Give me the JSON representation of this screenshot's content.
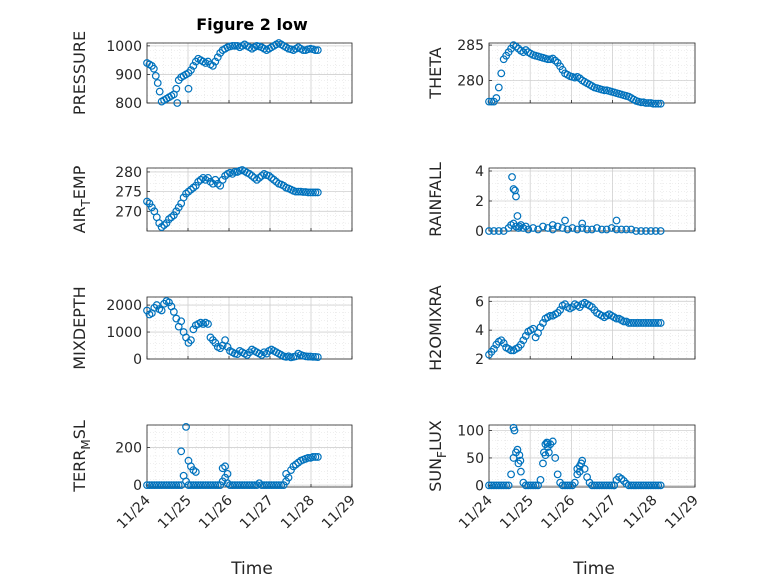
{
  "figure_title": "Figure 2 low",
  "colors": {
    "marker": "#0072bd",
    "axis": "#262626",
    "grid": "#dfdfdf"
  },
  "chart_data": [
    {
      "type": "scatter",
      "ylabel": "PRESSURE",
      "ylabel_sub": "",
      "ylim": [
        800,
        1010
      ],
      "yticks": [
        800,
        900,
        1000
      ],
      "xlim": [
        0,
        4.2
      ],
      "xticks": [
        "11/24",
        "11/25",
        "11/26",
        "11/27",
        "11/28",
        "11/29"
      ],
      "grid": true,
      "x": [
        0.0,
        0.05,
        0.1,
        0.14,
        0.18,
        0.22,
        0.26,
        0.3,
        0.35,
        0.4,
        0.45,
        0.5,
        0.55,
        0.6,
        0.65,
        0.7,
        0.75,
        0.8,
        0.85,
        0.9,
        0.95,
        1.0,
        1.05,
        1.1,
        1.15,
        1.2,
        1.25,
        1.3,
        1.35,
        1.4,
        1.45,
        1.5,
        1.55,
        1.6,
        1.65,
        1.7,
        1.75,
        1.8,
        1.85,
        1.9,
        1.95,
        2.0,
        2.05,
        2.1,
        2.15,
        2.2,
        2.25,
        2.3,
        2.35,
        2.4,
        2.45,
        2.5,
        2.55,
        2.6,
        2.65,
        2.7,
        2.75,
        2.8,
        2.85,
        2.9,
        2.95,
        3.0,
        3.05,
        3.1,
        3.15,
        3.2,
        3.25,
        3.3,
        3.35,
        3.4,
        3.45,
        3.5,
        0.62,
        0.85
      ],
      "y": [
        940,
        935,
        930,
        920,
        895,
        870,
        840,
        805,
        810,
        815,
        820,
        825,
        830,
        850,
        880,
        890,
        895,
        900,
        905,
        915,
        930,
        945,
        955,
        950,
        945,
        940,
        945,
        935,
        930,
        945,
        960,
        975,
        985,
        990,
        995,
        998,
        1000,
        1000,
        1000,
        995,
        1000,
        1005,
        1000,
        995,
        990,
        995,
        1000,
        998,
        995,
        990,
        985,
        990,
        995,
        1000,
        1005,
        1010,
        1005,
        1000,
        995,
        990,
        988,
        985,
        990,
        995,
        990,
        985,
        985,
        988,
        990,
        988,
        985,
        985,
        800,
        850
      ]
    },
    {
      "type": "scatter",
      "ylabel": "THETA",
      "ylabel_sub": "",
      "ylim": [
        276.8,
        285.3
      ],
      "yticks": [
        280,
        285
      ],
      "xlim": [
        0,
        4.2
      ],
      "xticks": [
        "11/24",
        "11/25",
        "11/26",
        "11/27",
        "11/28",
        "11/29"
      ],
      "grid": true,
      "x": [
        0.0,
        0.05,
        0.1,
        0.15,
        0.2,
        0.25,
        0.3,
        0.35,
        0.4,
        0.45,
        0.5,
        0.55,
        0.6,
        0.65,
        0.7,
        0.75,
        0.8,
        0.85,
        0.9,
        0.95,
        1.0,
        1.05,
        1.1,
        1.15,
        1.2,
        1.25,
        1.3,
        1.35,
        1.4,
        1.45,
        1.5,
        1.55,
        1.6,
        1.65,
        1.7,
        1.75,
        1.8,
        1.85,
        1.9,
        1.95,
        2.0,
        2.05,
        2.1,
        2.15,
        2.2,
        2.25,
        2.3,
        2.35,
        2.4,
        2.45,
        2.5,
        2.55,
        2.6,
        2.65,
        2.7,
        2.75,
        2.8,
        2.85,
        2.9,
        2.95,
        3.0,
        3.05,
        3.1,
        3.15,
        3.2,
        3.25,
        3.3,
        3.35,
        3.4,
        3.45,
        3.5
      ],
      "y": [
        277,
        277,
        277,
        277.5,
        279,
        281,
        283,
        283.5,
        284,
        284.5,
        285,
        284.8,
        284.5,
        284.2,
        284,
        284.3,
        284,
        283.8,
        283.6,
        283.5,
        283.4,
        283.3,
        283.2,
        283.1,
        283,
        283,
        283.1,
        282.8,
        282.5,
        282,
        281.5,
        281,
        280.8,
        280.6,
        280.5,
        280.4,
        280.5,
        280.3,
        280,
        279.8,
        279.6,
        279.4,
        279.2,
        279,
        278.9,
        278.8,
        278.7,
        278.6,
        278.6,
        278.5,
        278.4,
        278.3,
        278.2,
        278.1,
        278,
        277.9,
        277.8,
        277.7,
        277.5,
        277.3,
        277.1,
        277,
        276.9,
        276.9,
        276.8,
        276.8,
        276.8,
        276.7,
        276.7,
        276.7,
        276.7
      ]
    },
    {
      "type": "scatter",
      "ylabel": "AIR",
      "ylabel_sub": "T",
      "ylabel_rest": "EMP",
      "ylim": [
        265,
        281
      ],
      "yticks": [
        270,
        275,
        280
      ],
      "xlim": [
        0,
        4.2
      ],
      "xticks": [
        "11/24",
        "11/25",
        "11/26",
        "11/27",
        "11/28",
        "11/29"
      ],
      "grid": true,
      "x": [
        0.0,
        0.05,
        0.1,
        0.15,
        0.2,
        0.25,
        0.3,
        0.35,
        0.4,
        0.45,
        0.5,
        0.55,
        0.6,
        0.65,
        0.7,
        0.75,
        0.8,
        0.85,
        0.9,
        0.95,
        1.0,
        1.05,
        1.1,
        1.15,
        1.2,
        1.25,
        1.3,
        1.35,
        1.4,
        1.45,
        1.5,
        1.55,
        1.6,
        1.65,
        1.7,
        1.75,
        1.8,
        1.85,
        1.9,
        1.95,
        2.0,
        2.05,
        2.1,
        2.15,
        2.2,
        2.25,
        2.3,
        2.35,
        2.4,
        2.45,
        2.5,
        2.55,
        2.6,
        2.65,
        2.7,
        2.75,
        2.8,
        2.85,
        2.9,
        2.95,
        3.0,
        3.05,
        3.1,
        3.15,
        3.2,
        3.25,
        3.3,
        3.35,
        3.4,
        3.45,
        3.5
      ],
      "y": [
        272.5,
        272,
        271,
        270,
        268.5,
        267,
        266,
        266.5,
        267,
        268,
        268.5,
        269,
        270,
        271,
        272,
        273.5,
        274.5,
        275,
        275.5,
        276,
        276.5,
        277.5,
        278,
        278.5,
        278,
        278.5,
        277.5,
        277,
        278,
        277,
        276.5,
        278,
        279,
        279.5,
        279.8,
        279.5,
        280,
        280,
        280.3,
        280.5,
        280.2,
        279.8,
        279.5,
        279,
        278.5,
        278,
        278.5,
        279,
        279.5,
        279.2,
        279,
        278.5,
        278,
        277.5,
        277,
        276.8,
        276.5,
        276,
        275.8,
        275.5,
        275.2,
        275,
        275,
        275,
        274.9,
        274.9,
        274.8,
        274.8,
        274.8,
        274.8,
        274.8
      ]
    },
    {
      "type": "scatter",
      "ylabel": "RAINFALL",
      "ylabel_sub": "",
      "ylim": [
        0,
        4.2
      ],
      "yticks": [
        0,
        2,
        4
      ],
      "xlim": [
        0,
        4.2
      ],
      "xticks": [
        "11/24",
        "11/25",
        "11/26",
        "11/27",
        "11/28",
        "11/29"
      ],
      "grid": true,
      "x": [
        0.0,
        0.1,
        0.2,
        0.3,
        0.4,
        0.45,
        0.5,
        0.55,
        0.6,
        0.65,
        0.7,
        0.75,
        0.8,
        0.9,
        1.0,
        1.1,
        1.2,
        1.3,
        1.4,
        1.5,
        1.6,
        1.7,
        1.8,
        1.9,
        2.0,
        2.1,
        2.2,
        2.3,
        2.4,
        2.5,
        2.6,
        2.7,
        2.8,
        2.9,
        3.0,
        3.1,
        3.2,
        3.3,
        3.4,
        3.5,
        0.47,
        0.5,
        0.53,
        0.55,
        0.58,
        0.62,
        1.3,
        1.55,
        1.9,
        2.6
      ],
      "y": [
        0,
        0,
        0,
        0,
        0.2,
        0.4,
        0.5,
        0.3,
        0.2,
        0.4,
        0.2,
        0.3,
        0.1,
        0.2,
        0.1,
        0.3,
        0.2,
        0.1,
        0.3,
        0.2,
        0.1,
        0.2,
        0.1,
        0.2,
        0.1,
        0.1,
        0.2,
        0.1,
        0.1,
        0.2,
        0.1,
        0.1,
        0.1,
        0.1,
        0,
        0,
        0,
        0,
        0,
        0,
        3.6,
        2.8,
        2.7,
        2.3,
        1.0,
        0.3,
        0.4,
        0.7,
        0.5,
        0.7
      ]
    },
    {
      "type": "scatter",
      "ylabel": "MIXDEPTH",
      "ylabel_sub": "",
      "ylim": [
        0,
        2300
      ],
      "yticks": [
        0,
        1000,
        2000
      ],
      "xlim": [
        0,
        4.2
      ],
      "xticks": [
        "11/24",
        "11/25",
        "11/26",
        "11/27",
        "11/28",
        "11/29"
      ],
      "grid": true,
      "x": [
        0.0,
        0.05,
        0.1,
        0.15,
        0.2,
        0.25,
        0.3,
        0.35,
        0.4,
        0.45,
        0.5,
        0.55,
        0.6,
        0.65,
        0.7,
        0.75,
        0.8,
        0.85,
        0.9,
        0.95,
        1.0,
        1.05,
        1.1,
        1.15,
        1.2,
        1.25,
        1.3,
        1.35,
        1.4,
        1.45,
        1.5,
        1.55,
        1.6,
        1.65,
        1.7,
        1.75,
        1.8,
        1.85,
        1.9,
        1.95,
        2.0,
        2.05,
        2.1,
        2.15,
        2.2,
        2.25,
        2.3,
        2.35,
        2.4,
        2.45,
        2.5,
        2.55,
        2.6,
        2.65,
        2.7,
        2.75,
        2.8,
        2.85,
        2.9,
        2.95,
        3.0,
        3.05,
        3.1,
        3.15,
        3.2,
        3.25,
        3.3,
        3.35,
        3.4,
        3.45,
        3.5
      ],
      "y": [
        1800,
        1650,
        1700,
        1900,
        2000,
        1850,
        1800,
        2050,
        2150,
        2100,
        1950,
        1750,
        1500,
        1200,
        1400,
        1000,
        800,
        600,
        700,
        1100,
        1250,
        1300,
        1350,
        1300,
        1350,
        1300,
        800,
        700,
        600,
        450,
        400,
        500,
        700,
        450,
        300,
        250,
        200,
        180,
        300,
        250,
        200,
        150,
        250,
        350,
        300,
        250,
        200,
        150,
        250,
        200,
        300,
        350,
        300,
        250,
        200,
        150,
        100,
        80,
        100,
        60,
        80,
        100,
        200,
        150,
        120,
        100,
        90,
        90,
        80,
        80,
        70
      ]
    },
    {
      "type": "scatter",
      "ylabel": "H2OMIXRA",
      "ylabel_sub": "",
      "ylim": [
        2,
        6.3
      ],
      "yticks": [
        2,
        4,
        6
      ],
      "xlim": [
        0,
        4.2
      ],
      "xticks": [
        "11/24",
        "11/25",
        "11/26",
        "11/27",
        "11/28",
        "11/29"
      ],
      "grid": true,
      "x": [
        0.0,
        0.05,
        0.1,
        0.15,
        0.2,
        0.25,
        0.3,
        0.35,
        0.4,
        0.45,
        0.5,
        0.55,
        0.6,
        0.65,
        0.7,
        0.75,
        0.8,
        0.85,
        0.9,
        0.95,
        1.0,
        1.05,
        1.1,
        1.15,
        1.2,
        1.25,
        1.3,
        1.35,
        1.4,
        1.45,
        1.5,
        1.55,
        1.6,
        1.65,
        1.7,
        1.75,
        1.8,
        1.85,
        1.9,
        1.95,
        2.0,
        2.05,
        2.1,
        2.15,
        2.2,
        2.25,
        2.3,
        2.35,
        2.4,
        2.45,
        2.5,
        2.55,
        2.6,
        2.65,
        2.7,
        2.75,
        2.8,
        2.85,
        2.9,
        2.95,
        3.0,
        3.05,
        3.1,
        3.15,
        3.2,
        3.25,
        3.3,
        3.35,
        3.4,
        3.45,
        3.5
      ],
      "y": [
        2.3,
        2.5,
        2.7,
        3.0,
        3.2,
        3.3,
        3.1,
        2.8,
        2.7,
        2.6,
        2.6,
        2.7,
        2.8,
        3.0,
        3.3,
        3.6,
        3.9,
        4.0,
        4.1,
        3.5,
        3.8,
        4.2,
        4.5,
        4.8,
        4.9,
        5.0,
        5.0,
        5.1,
        5.2,
        5.4,
        5.7,
        5.8,
        5.6,
        5.5,
        5.6,
        5.8,
        5.7,
        5.6,
        5.8,
        5.9,
        5.8,
        5.7,
        5.6,
        5.4,
        5.2,
        5.1,
        5.0,
        4.9,
        5.0,
        5.1,
        5.0,
        4.9,
        4.8,
        4.8,
        4.7,
        4.6,
        4.6,
        4.5,
        4.5,
        4.5,
        4.5,
        4.5,
        4.5,
        4.5,
        4.5,
        4.5,
        4.5,
        4.5,
        4.5,
        4.5,
        4.5
      ]
    },
    {
      "type": "scatter",
      "ylabel": "TERR",
      "ylabel_sub": "M",
      "ylabel_rest": "SL",
      "ylim": [
        -10,
        320
      ],
      "yticks": [
        0,
        200
      ],
      "xlim": [
        0,
        4.2
      ],
      "xticks": [
        "11/24",
        "11/25",
        "11/26",
        "11/27",
        "11/28",
        "11/29"
      ],
      "grid": true,
      "x": [
        0.0,
        0.05,
        0.1,
        0.15,
        0.2,
        0.25,
        0.3,
        0.35,
        0.4,
        0.45,
        0.5,
        0.55,
        0.6,
        0.65,
        0.7,
        0.75,
        0.8,
        0.85,
        0.9,
        0.95,
        1.0,
        1.05,
        1.1,
        1.15,
        1.2,
        1.25,
        1.3,
        1.35,
        1.4,
        1.45,
        1.5,
        1.55,
        1.6,
        1.65,
        1.7,
        1.75,
        1.8,
        1.85,
        1.9,
        1.95,
        2.0,
        2.05,
        2.1,
        2.15,
        2.2,
        2.25,
        2.3,
        2.35,
        2.4,
        2.45,
        2.5,
        2.55,
        2.6,
        2.65,
        2.7,
        2.75,
        2.8,
        2.85,
        2.9,
        2.95,
        3.0,
        3.05,
        3.1,
        3.15,
        3.2,
        3.25,
        3.3,
        3.35,
        3.4,
        3.45,
        3.5,
        0.7,
        0.8,
        0.85,
        0.9,
        0.95,
        1.0,
        1.55,
        1.6,
        1.65,
        2.85
      ],
      "y": [
        0,
        0,
        0,
        0,
        0,
        0,
        0,
        0,
        0,
        0,
        0,
        0,
        0,
        0,
        0,
        50,
        20,
        0,
        0,
        0,
        0,
        0,
        0,
        0,
        0,
        0,
        0,
        0,
        0,
        0,
        0,
        20,
        40,
        10,
        0,
        0,
        0,
        0,
        0,
        0,
        0,
        0,
        0,
        0,
        0,
        0,
        10,
        0,
        0,
        0,
        0,
        0,
        0,
        0,
        0,
        0,
        0,
        20,
        40,
        80,
        100,
        110,
        120,
        130,
        135,
        140,
        145,
        145,
        150,
        150,
        150,
        180,
        310,
        130,
        100,
        80,
        70,
        90,
        100,
        60,
        60
      ]
    },
    {
      "type": "scatter",
      "ylabel": "SUN",
      "ylabel_sub": "F",
      "ylabel_rest": "LUX",
      "ylim": [
        -3,
        110
      ],
      "yticks": [
        0,
        50,
        100
      ],
      "xlim": [
        0,
        4.2
      ],
      "xticks": [
        "11/24",
        "11/25",
        "11/26",
        "11/27",
        "11/28",
        "11/29"
      ],
      "grid": true,
      "x": [
        0.0,
        0.05,
        0.1,
        0.15,
        0.2,
        0.25,
        0.3,
        0.35,
        0.4,
        0.45,
        0.5,
        0.55,
        0.6,
        0.65,
        0.7,
        0.75,
        0.8,
        0.85,
        0.9,
        0.95,
        1.0,
        1.05,
        1.1,
        1.15,
        1.2,
        1.25,
        1.3,
        1.35,
        1.4,
        1.45,
        1.5,
        1.55,
        1.6,
        1.65,
        1.7,
        1.75,
        1.8,
        1.85,
        1.9,
        1.95,
        2.0,
        2.05,
        2.1,
        2.15,
        2.2,
        2.25,
        2.3,
        2.35,
        2.4,
        2.45,
        2.5,
        2.55,
        2.6,
        2.65,
        2.7,
        2.75,
        2.8,
        2.85,
        2.9,
        2.95,
        3.0,
        3.05,
        3.1,
        3.15,
        3.2,
        3.25,
        3.3,
        3.35,
        3.4,
        3.45,
        3.5,
        0.5,
        0.52,
        0.58,
        0.62,
        0.64,
        1.12,
        1.15,
        1.18,
        1.2,
        1.22,
        1.8,
        1.85,
        1.88,
        2.55
      ],
      "y": [
        0,
        0,
        0,
        0,
        0,
        0,
        0,
        0,
        0,
        20,
        50,
        60,
        40,
        25,
        5,
        0,
        0,
        0,
        0,
        0,
        0,
        10,
        40,
        55,
        70,
        75,
        80,
        50,
        20,
        5,
        0,
        0,
        0,
        0,
        0,
        5,
        20,
        35,
        45,
        30,
        15,
        5,
        0,
        0,
        0,
        0,
        0,
        0,
        0,
        0,
        0,
        0,
        10,
        15,
        12,
        8,
        3,
        0,
        0,
        0,
        0,
        0,
        0,
        0,
        0,
        0,
        0,
        0,
        0,
        0,
        0,
        105,
        100,
        65,
        55,
        45,
        60,
        75,
        78,
        77,
        60,
        30,
        25,
        40,
        0
      ]
    }
  ],
  "xlabel_left": "Time",
  "xlabel_right": "Time"
}
